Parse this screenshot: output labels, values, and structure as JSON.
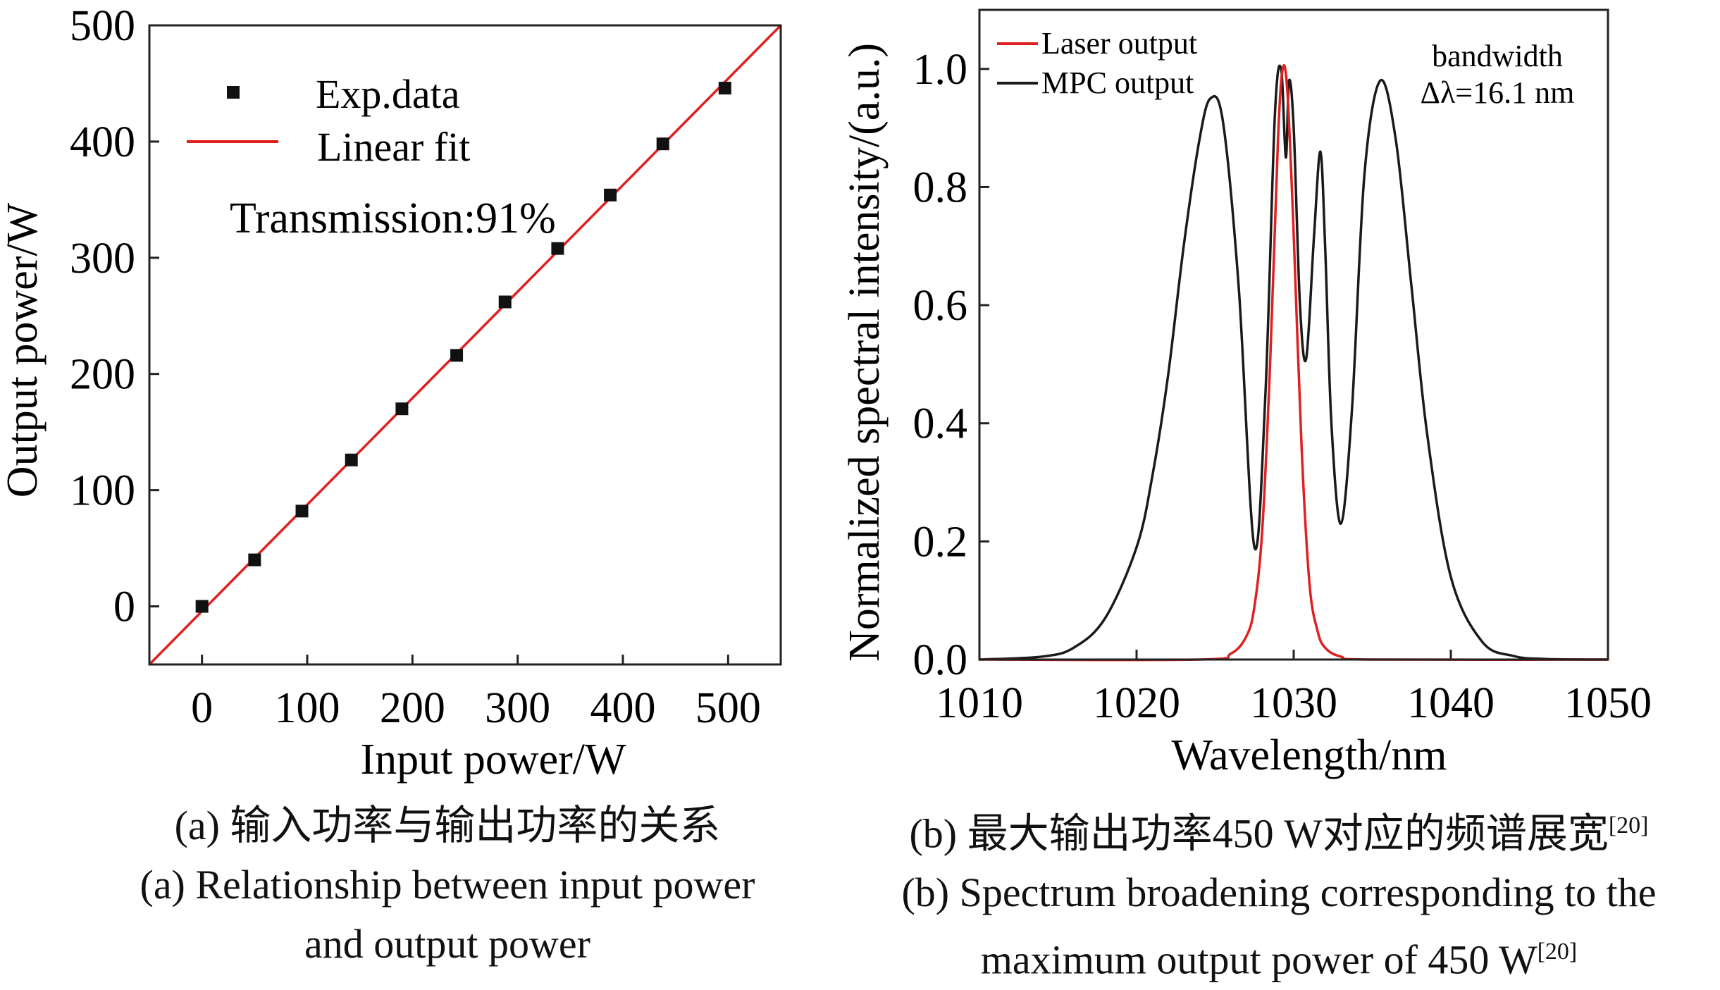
{
  "colors": {
    "fit": "#e02020",
    "laser": "#e02020",
    "mpc": "#1a1a1a",
    "marker": "#111111",
    "axis": "#222222"
  },
  "chart_data": [
    {
      "type": "scatter",
      "xlabel": "Input power/W",
      "ylabel": "Output power/W",
      "xlim": [
        -50,
        550
      ],
      "ylim": [
        -50,
        500
      ],
      "xticks": [
        "0",
        "100",
        "200",
        "300",
        "400",
        "500"
      ],
      "yticks": [
        "0",
        "100",
        "200",
        "300",
        "400",
        "500"
      ],
      "legend": {
        "placement": "top-left",
        "data_label": "Exp.data",
        "fit_label": "Linear fit"
      },
      "annotation": "Transmission:91%",
      "series": [
        {
          "name": "Exp.data",
          "x": [
            0,
            50,
            95,
            142,
            190,
            242,
            288,
            338,
            388,
            438,
            497
          ],
          "y": [
            0,
            40,
            82,
            126,
            170,
            216,
            262,
            308,
            354,
            398,
            446
          ]
        },
        {
          "name": "Linear fit",
          "x": [
            -50,
            550
          ],
          "y": [
            -50,
            500
          ]
        }
      ]
    },
    {
      "type": "line",
      "xlabel": "Wavelength/nm",
      "ylabel": "Normalized spectral intensity/(a.u.)",
      "xlim": [
        1010,
        1050
      ],
      "ylim": [
        0,
        1.1
      ],
      "xticks": [
        "1010",
        "1020",
        "1030",
        "1040",
        "1050"
      ],
      "yticks": [
        "0.0",
        "0.2",
        "0.4",
        "0.6",
        "0.8",
        "1.0"
      ],
      "legend": {
        "placement": "top-left",
        "laser_label": "Laser output",
        "mpc_label": "MPC output"
      },
      "annotation": {
        "line1": "bandwidth",
        "line2": "Δλ=16.1 nm"
      },
      "series": [
        {
          "name": "Laser output",
          "x": [
            1010,
            1024,
            1026,
            1027,
            1027.5,
            1028,
            1028.5,
            1029,
            1029.3,
            1029.6,
            1030,
            1030.5,
            1031,
            1031.5,
            1032,
            1033,
            1035,
            1050
          ],
          "y": [
            0,
            0,
            0.01,
            0.04,
            0.09,
            0.22,
            0.5,
            0.88,
            1.0,
            0.96,
            0.72,
            0.36,
            0.13,
            0.05,
            0.02,
            0.005,
            0,
            0
          ]
        },
        {
          "name": "MPC output",
          "x": [
            1010,
            1014,
            1016,
            1018,
            1020,
            1021,
            1022,
            1023,
            1024,
            1024.7,
            1025.5,
            1026.5,
            1027.5,
            1028.2,
            1028.8,
            1029.2,
            1029.5,
            1029.7,
            1030,
            1030.4,
            1030.8,
            1031.3,
            1031.7,
            1032,
            1032.4,
            1033,
            1033.7,
            1034.5,
            1035.5,
            1036.5,
            1037.5,
            1038.5,
            1040,
            1042,
            1044,
            1046,
            1050
          ],
          "y": [
            0,
            0.005,
            0.02,
            0.07,
            0.19,
            0.31,
            0.48,
            0.7,
            0.88,
            0.95,
            0.91,
            0.63,
            0.19,
            0.45,
            0.92,
            1.0,
            0.85,
            0.98,
            0.9,
            0.6,
            0.51,
            0.72,
            0.86,
            0.7,
            0.4,
            0.23,
            0.42,
            0.82,
            0.98,
            0.88,
            0.63,
            0.38,
            0.14,
            0.03,
            0.006,
            0.001,
            0
          ]
        }
      ]
    }
  ],
  "captions": {
    "a_cn": "(a) 输入功率与输出功率的关系",
    "a_en_1": "(a) Relationship between input power",
    "a_en_2": "and output power",
    "b_cn": "(b) 最大输出功率450 W对应的频谱展宽",
    "b_en_1": "(b) Spectrum broadening corresponding to the",
    "b_en_2": "maximum output power of 450 W",
    "ref": "[20]"
  }
}
